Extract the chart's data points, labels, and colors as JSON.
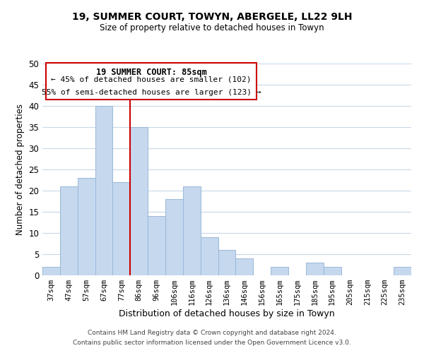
{
  "title": "19, SUMMER COURT, TOWYN, ABERGELE, LL22 9LH",
  "subtitle": "Size of property relative to detached houses in Towyn",
  "xlabel": "Distribution of detached houses by size in Towyn",
  "ylabel": "Number of detached properties",
  "bar_labels": [
    "37sqm",
    "47sqm",
    "57sqm",
    "67sqm",
    "77sqm",
    "86sqm",
    "96sqm",
    "106sqm",
    "116sqm",
    "126sqm",
    "136sqm",
    "146sqm",
    "156sqm",
    "165sqm",
    "175sqm",
    "185sqm",
    "195sqm",
    "205sqm",
    "215sqm",
    "225sqm",
    "235sqm"
  ],
  "bar_values": [
    2,
    21,
    23,
    40,
    22,
    35,
    14,
    18,
    21,
    9,
    6,
    4,
    0,
    2,
    0,
    3,
    2,
    0,
    0,
    0,
    2
  ],
  "bar_color": "#c5d8ee",
  "bar_edge_color": "#9ab8d8",
  "vline_color": "#cc0000",
  "ylim": [
    0,
    50
  ],
  "yticks": [
    0,
    5,
    10,
    15,
    20,
    25,
    30,
    35,
    40,
    45,
    50
  ],
  "annotation_title": "19 SUMMER COURT: 85sqm",
  "annotation_line1": "← 45% of detached houses are smaller (102)",
  "annotation_line2": "55% of semi-detached houses are larger (123) →",
  "annotation_box_edge": "#cc0000",
  "footer1": "Contains HM Land Registry data © Crown copyright and database right 2024.",
  "footer2": "Contains public sector information licensed under the Open Government Licence v3.0.",
  "background_color": "#ffffff",
  "grid_color": "#c8d8e8"
}
